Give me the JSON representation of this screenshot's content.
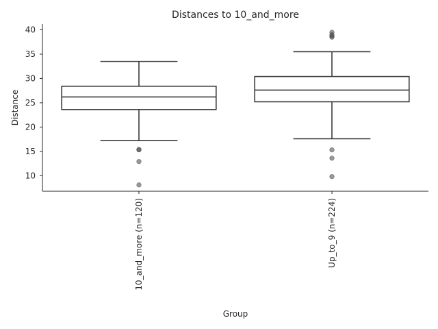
{
  "chart_data": {
    "type": "box",
    "title": "Distances to 10_and_more",
    "xlabel": "Group",
    "ylabel": "Distance",
    "ylim": [
      6.8,
      41.2
    ],
    "yticks": [
      10,
      15,
      20,
      25,
      30,
      35,
      40
    ],
    "grid": false,
    "groups": [
      {
        "label": "10_and_more (n=120)",
        "whisker_low": 17.2,
        "q1": 23.6,
        "median": 26.2,
        "q3": 28.4,
        "whisker_high": 33.5,
        "outliers": [
          15.3,
          15.4,
          12.9,
          8.1
        ]
      },
      {
        "label": "Up_to_9 (n=224)",
        "whisker_low": 17.6,
        "q1": 25.2,
        "median": 27.6,
        "q3": 30.4,
        "whisker_high": 35.5,
        "outliers": [
          38.5,
          38.7,
          39.0,
          39.5,
          15.3,
          13.6,
          9.8
        ]
      }
    ]
  }
}
